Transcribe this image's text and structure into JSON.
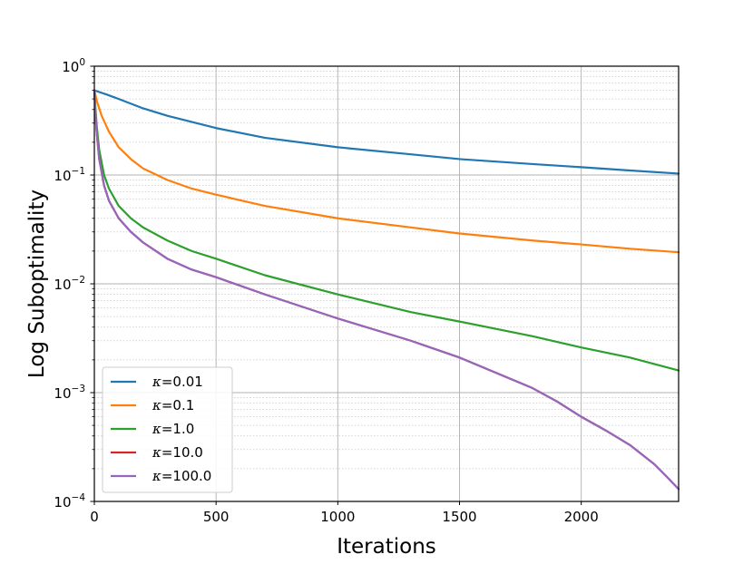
{
  "chart_data": {
    "type": "line",
    "title": "",
    "xlabel": "Iterations",
    "ylabel": "Log Suboptimality",
    "xlim": [
      0,
      2400
    ],
    "ylim": [
      0.0001,
      1
    ],
    "yscale": "log",
    "grid": true,
    "legend_position": "lower-left",
    "x_ticks": [
      0,
      500,
      1000,
      1500,
      2000
    ],
    "x_tick_labels": [
      "0",
      "500",
      "1000",
      "1500",
      "2000"
    ],
    "y_ticks": [
      1,
      0.1,
      0.01,
      0.001,
      0.0001
    ],
    "y_tick_labels": [
      {
        "base": "10",
        "exp": "0"
      },
      {
        "base": "10",
        "exp": "−1"
      },
      {
        "base": "10",
        "exp": "−2"
      },
      {
        "base": "10",
        "exp": "−3"
      },
      {
        "base": "10",
        "exp": "−4"
      }
    ],
    "series": [
      {
        "name": "κ=0.01",
        "symbol": "κ",
        "label_rest": "=0.01",
        "color": "#1f77b4",
        "x": [
          0,
          50,
          100,
          200,
          300,
          500,
          700,
          1000,
          1300,
          1500,
          1800,
          2000,
          2200,
          2400
        ],
        "y": [
          0.6,
          0.55,
          0.5,
          0.41,
          0.35,
          0.27,
          0.22,
          0.18,
          0.155,
          0.14,
          0.126,
          0.118,
          0.11,
          0.103
        ]
      },
      {
        "name": "κ=0.1",
        "symbol": "κ",
        "label_rest": "=0.1",
        "color": "#ff7f0e",
        "x": [
          0,
          10,
          30,
          60,
          100,
          150,
          200,
          300,
          400,
          500,
          700,
          1000,
          1300,
          1500,
          1800,
          2000,
          2200,
          2400
        ],
        "y": [
          0.6,
          0.48,
          0.35,
          0.25,
          0.18,
          0.14,
          0.115,
          0.09,
          0.075,
          0.066,
          0.052,
          0.04,
          0.033,
          0.029,
          0.025,
          0.023,
          0.021,
          0.0195
        ]
      },
      {
        "name": "κ=1.0",
        "symbol": "κ",
        "label_rest": "=1.0",
        "color": "#2ca02c",
        "x": [
          0,
          5,
          10,
          20,
          40,
          60,
          100,
          150,
          200,
          300,
          400,
          500,
          700,
          1000,
          1300,
          1500,
          1800,
          2000,
          2200,
          2400
        ],
        "y": [
          0.6,
          0.4,
          0.28,
          0.17,
          0.1,
          0.075,
          0.052,
          0.04,
          0.033,
          0.025,
          0.02,
          0.017,
          0.012,
          0.008,
          0.0055,
          0.0045,
          0.0033,
          0.0026,
          0.0021,
          0.0016
        ]
      },
      {
        "name": "κ=10.0",
        "symbol": "κ",
        "label_rest": "=10.0",
        "color": "#d62728",
        "x": [
          0,
          5,
          10,
          20,
          40,
          60,
          100,
          150,
          200,
          300,
          400,
          500,
          700,
          1000,
          1300,
          1500,
          1800,
          1900,
          2000,
          2100,
          2200,
          2300,
          2350,
          2400
        ],
        "y": [
          0.6,
          0.35,
          0.24,
          0.14,
          0.08,
          0.058,
          0.04,
          0.03,
          0.024,
          0.017,
          0.0135,
          0.0115,
          0.008,
          0.0048,
          0.003,
          0.0021,
          0.0011,
          0.00083,
          0.0006,
          0.00045,
          0.00033,
          0.00022,
          0.00017,
          0.00013
        ]
      },
      {
        "name": "κ=100.0",
        "symbol": "κ",
        "label_rest": "=100.0",
        "color": "#9467bd",
        "x": [
          0,
          5,
          10,
          20,
          40,
          60,
          100,
          150,
          200,
          300,
          400,
          500,
          700,
          1000,
          1300,
          1500,
          1800,
          1900,
          2000,
          2100,
          2200,
          2300,
          2350,
          2400
        ],
        "y": [
          0.6,
          0.35,
          0.24,
          0.14,
          0.08,
          0.058,
          0.04,
          0.03,
          0.024,
          0.017,
          0.0135,
          0.0115,
          0.008,
          0.0048,
          0.003,
          0.0021,
          0.0011,
          0.00083,
          0.0006,
          0.00045,
          0.00033,
          0.00022,
          0.00017,
          0.00013
        ]
      }
    ]
  }
}
